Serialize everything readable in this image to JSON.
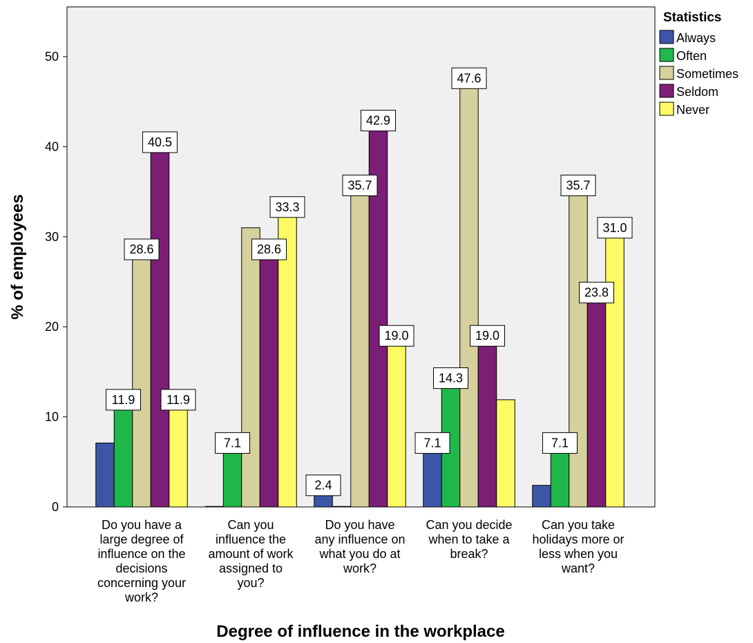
{
  "chart_data": {
    "type": "bar",
    "xlabel": "Degree of influence in the workplace",
    "ylabel": "% of employees",
    "ylim": [
      0,
      55
    ],
    "yticks": [
      0,
      10,
      20,
      30,
      40,
      50
    ],
    "grid": false,
    "legend": {
      "title": "Statistics",
      "placement": "right"
    },
    "categories": [
      [
        "Do you have a",
        "large degree of",
        "influence on the",
        "decisions",
        "concerning your",
        "work?"
      ],
      [
        "Can you",
        "influence the",
        "amount of work",
        "assigned to",
        "you?"
      ],
      [
        "Do you have",
        "any influence on",
        "what you do at",
        "work?"
      ],
      [
        "Can you decide",
        "when to take a",
        "break?"
      ],
      [
        "Can you take",
        "holidays more or",
        "less when you",
        "want?"
      ]
    ],
    "series": [
      {
        "name": "Always",
        "color": "#3c55a6",
        "values": [
          7.1,
          0.0,
          2.4,
          7.1,
          2.4
        ],
        "labels": [
          "",
          "",
          "2.4",
          "7.1",
          ""
        ]
      },
      {
        "name": "Often",
        "color": "#20b84a",
        "values": [
          11.9,
          7.1,
          0.0,
          14.3,
          7.1
        ],
        "labels": [
          "11.9",
          "7.1",
          "",
          "14.3",
          "7.1"
        ]
      },
      {
        "name": "Sometimes",
        "color": "#d6d09c",
        "values": [
          28.6,
          31.0,
          35.7,
          47.6,
          35.7
        ],
        "labels": [
          "28.6",
          "",
          "35.7",
          "47.6",
          "35.7"
        ]
      },
      {
        "name": "Seldom",
        "color": "#7b1e76",
        "values": [
          40.5,
          28.6,
          42.9,
          19.0,
          23.8
        ],
        "labels": [
          "40.5",
          "28.6",
          "42.9",
          "19.0",
          "23.8"
        ]
      },
      {
        "name": "Never",
        "color": "#fdfa63",
        "values": [
          11.9,
          33.3,
          19.0,
          11.9,
          31.0
        ],
        "labels": [
          "11.9",
          "33.3",
          "19.0",
          "",
          "31.0"
        ]
      }
    ]
  }
}
